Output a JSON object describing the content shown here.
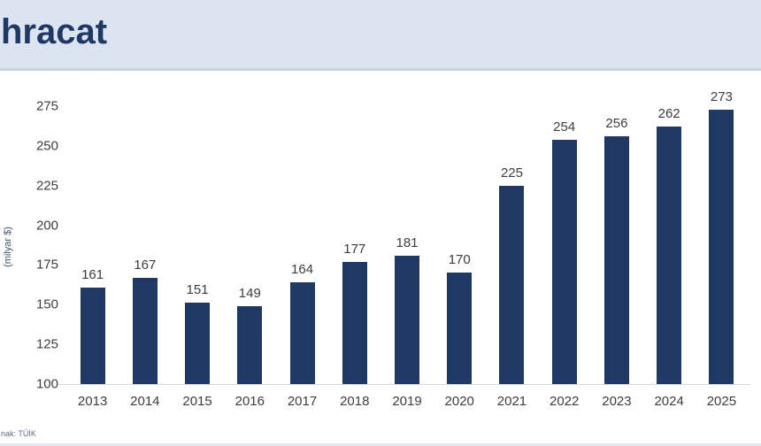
{
  "header": {
    "title": "hracat"
  },
  "footer": {
    "source": "nak: TÜİK"
  },
  "colors": {
    "bar": "#1f3864",
    "header_bg": "#dbe4f0",
    "title_text": "#1f3864",
    "label_text": "#3d3d3d",
    "axis_line": "#d9d9d9"
  },
  "chart_data": {
    "type": "bar",
    "categories": [
      "2013",
      "2014",
      "2015",
      "2016",
      "2017",
      "2018",
      "2019",
      "2020",
      "2021",
      "2022",
      "2023",
      "2024",
      "2025"
    ],
    "values": [
      161,
      167,
      151,
      149,
      164,
      177,
      181,
      170,
      225,
      254,
      256,
      262,
      273
    ],
    "title": "",
    "xlabel": "",
    "ylabel": "(milyar $)",
    "ylim": [
      100,
      275
    ],
    "yticks": [
      100,
      125,
      150,
      175,
      200,
      225,
      250,
      275
    ],
    "grid": false,
    "legend_position": "none",
    "data_labels": true
  }
}
